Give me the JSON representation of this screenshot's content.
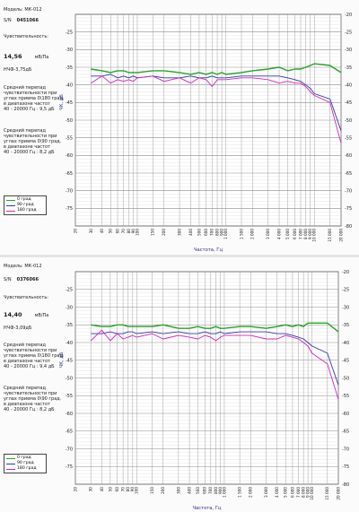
{
  "chart_data": [
    {
      "type": "line",
      "model": "Модель: МК-012",
      "serial_label": "S/N",
      "serial": "0451066",
      "sensitivity_label": "Чувствительность:",
      "sensitivity_value": "14,56",
      "sensitivity_unit": "мВ/Па",
      "nonlinearity": "НЧФ-3,75дБ",
      "diff_180": [
        "Средний перепад",
        "чувствительности при",
        "углах приема 0\\180 град.",
        "в диапазоне частот",
        "40 - 20000 Гц : 9,5 дБ"
      ],
      "diff_90": [
        "Средний перепад",
        "чувствительности при",
        "углах приема 0\\90 град.",
        "в диапазоне частот",
        "40 - 20000 Гц : 8,2 дБ"
      ],
      "xlabel": "Частота, Гц",
      "ylabel": "ЧК, дБ",
      "ylim": [
        -80,
        -20
      ],
      "y_ticks": [
        -25,
        -30,
        -35,
        -40,
        -45,
        -50,
        -55,
        -60,
        -65,
        -70,
        -75
      ],
      "y_ticks_right": [
        -20,
        -25,
        -30,
        -35,
        -40,
        -45,
        -50,
        -55,
        -60,
        -65,
        -70,
        -75,
        -80
      ],
      "x_scale": "log",
      "xlim": [
        20,
        20000
      ],
      "x_ticks": [
        20,
        30,
        40,
        50,
        60,
        70,
        80,
        90,
        100,
        150,
        200,
        300,
        400,
        500,
        600,
        700,
        800,
        900,
        1000,
        1500,
        2000,
        3000,
        4000,
        5000,
        6000,
        7000,
        8000,
        9000,
        10000,
        15000,
        20000
      ],
      "x_tick_labels": [
        "20",
        "30",
        "40",
        "50",
        "60",
        "70",
        "80",
        "90",
        "100",
        "150",
        "200",
        "300",
        "400",
        "500",
        "600",
        "700",
        "800",
        "900",
        "1 000",
        "1 500",
        "2 000",
        "3 000",
        "4 000",
        "5 000",
        "6 000",
        "7 000",
        "8 000",
        "9 000",
        "10 000",
        "15 000",
        "20 000"
      ],
      "grid": true,
      "x": [
        30,
        40,
        50,
        60,
        70,
        80,
        90,
        100,
        150,
        200,
        300,
        400,
        500,
        600,
        700,
        800,
        900,
        1000,
        1500,
        2000,
        3000,
        4000,
        5000,
        6000,
        7000,
        8000,
        9000,
        10000,
        15000,
        20000
      ],
      "series": [
        {
          "name": "0 град",
          "color": "#23a523",
          "values": [
            -35.5,
            -36,
            -36.5,
            -36,
            -36,
            -36.5,
            -36.5,
            -36.5,
            -36,
            -36,
            -36.5,
            -37,
            -36.5,
            -37,
            -36.5,
            -37,
            -36.5,
            -37,
            -36.5,
            -36,
            -35.5,
            -35,
            -36,
            -35.5,
            -35.5,
            -35,
            -34.5,
            -34,
            -34.5,
            -36.5
          ]
        },
        {
          "name": "90 град",
          "color": "#2b3c9e",
          "values": [
            -37.5,
            -37.5,
            -37,
            -38,
            -37.5,
            -38,
            -37.5,
            -38,
            -37.5,
            -38,
            -38,
            -37.5,
            -38,
            -38,
            -37.5,
            -38,
            -38,
            -38,
            -37.5,
            -37.5,
            -37.5,
            -37.5,
            -38,
            -38.5,
            -39,
            -40,
            -41,
            -42.5,
            -44,
            -53
          ]
        },
        {
          "name": "180 град",
          "color": "#d324c2",
          "values": [
            -39.5,
            -37.5,
            -39.5,
            -38.5,
            -39,
            -38.5,
            -39,
            -38,
            -37.5,
            -39,
            -38,
            -39.5,
            -38,
            -38.5,
            -40.5,
            -38.5,
            -38.5,
            -38.5,
            -38,
            -38,
            -38.5,
            -39.5,
            -39,
            -39.5,
            -39.5,
            -40.5,
            -42,
            -43,
            -45,
            -56.5
          ]
        }
      ],
      "legend": [
        "0 град",
        "90 град",
        "180 град"
      ]
    },
    {
      "type": "line",
      "model": "Модель: МК-012",
      "serial_label": "S/N",
      "serial": "0376066",
      "sensitivity_label": "Чувствительность:",
      "sensitivity_value": "14,40",
      "sensitivity_unit": "мВ/Па",
      "nonlinearity": "НЧФ-3,09дБ",
      "diff_180": [
        "Средний перепад",
        "чувствительности при",
        "углах приема 0\\180 град.",
        "в диапазоне частот",
        "40 - 20000 Гц : 9,4 дБ"
      ],
      "diff_90": [
        "Средний перепад",
        "чувствительности при",
        "углах приема 0\\90 град.",
        "в диапазоне частот",
        "40 - 20000 Гц : 8,2 дБ"
      ],
      "xlabel": "Частота, Гц",
      "ylabel": "ЧК, дБ",
      "ylim": [
        -80,
        -20
      ],
      "y_ticks": [
        -25,
        -30,
        -35,
        -40,
        -45,
        -50,
        -55,
        -60,
        -65,
        -70,
        -75
      ],
      "y_ticks_right": [
        -20,
        -25,
        -30,
        -35,
        -40,
        -45,
        -50,
        -55,
        -60,
        -65,
        -70,
        -75,
        -80
      ],
      "x_scale": "log",
      "xlim": [
        20,
        20000
      ],
      "x_ticks": [
        20,
        30,
        40,
        50,
        60,
        70,
        80,
        90,
        100,
        150,
        200,
        300,
        400,
        500,
        600,
        700,
        800,
        900,
        1000,
        1500,
        2000,
        3000,
        4000,
        5000,
        6000,
        7000,
        8000,
        9000,
        10000,
        15000,
        20000
      ],
      "x_tick_labels": [
        "20",
        "30",
        "40",
        "50",
        "60",
        "70",
        "80",
        "90",
        "100",
        "150",
        "200",
        "300",
        "400",
        "500",
        "600",
        "700",
        "800",
        "900",
        "1 000",
        "1 500",
        "2 000",
        "3 000",
        "4 000",
        "5 000",
        "6 000",
        "7 000",
        "8 000",
        "9 000",
        "10 000",
        "15 000",
        "20 000"
      ],
      "grid": true,
      "x": [
        30,
        40,
        50,
        60,
        70,
        80,
        90,
        100,
        150,
        200,
        300,
        400,
        500,
        600,
        700,
        800,
        900,
        1000,
        1500,
        2000,
        3000,
        4000,
        5000,
        6000,
        7000,
        8000,
        9000,
        10000,
        15000,
        20000
      ],
      "series": [
        {
          "name": "0 град",
          "color": "#23a523",
          "values": [
            -35,
            -35.5,
            -35.5,
            -35,
            -35,
            -35.5,
            -35.5,
            -35.5,
            -35.5,
            -35,
            -36,
            -36,
            -35.5,
            -36,
            -36,
            -35.5,
            -36,
            -36,
            -35.5,
            -35.5,
            -36,
            -35.5,
            -35,
            -35.5,
            -35,
            -35.5,
            -34.5,
            -34.5,
            -34.5,
            -37
          ]
        },
        {
          "name": "90 град",
          "color": "#2b3c9e",
          "values": [
            -37.5,
            -37.5,
            -37,
            -37.5,
            -37.5,
            -37,
            -37,
            -37.5,
            -37,
            -37.5,
            -37,
            -37.5,
            -37.5,
            -37,
            -37.5,
            -37.5,
            -37,
            -37.5,
            -37,
            -37,
            -37,
            -37.5,
            -37.5,
            -38,
            -38.5,
            -39,
            -40,
            -41,
            -43,
            -52
          ]
        },
        {
          "name": "180 град",
          "color": "#d324c2",
          "values": [
            -39.5,
            -36.5,
            -39.5,
            -37.5,
            -39,
            -38.5,
            -38,
            -38.5,
            -37.5,
            -39,
            -38,
            -38.5,
            -39,
            -38,
            -38.5,
            -39.5,
            -38.5,
            -38,
            -38,
            -38,
            -39,
            -39,
            -38,
            -38.5,
            -39,
            -40,
            -41,
            -43,
            -46,
            -56
          ]
        }
      ],
      "legend": [
        "0 град",
        "90 град",
        "180 град"
      ]
    }
  ]
}
